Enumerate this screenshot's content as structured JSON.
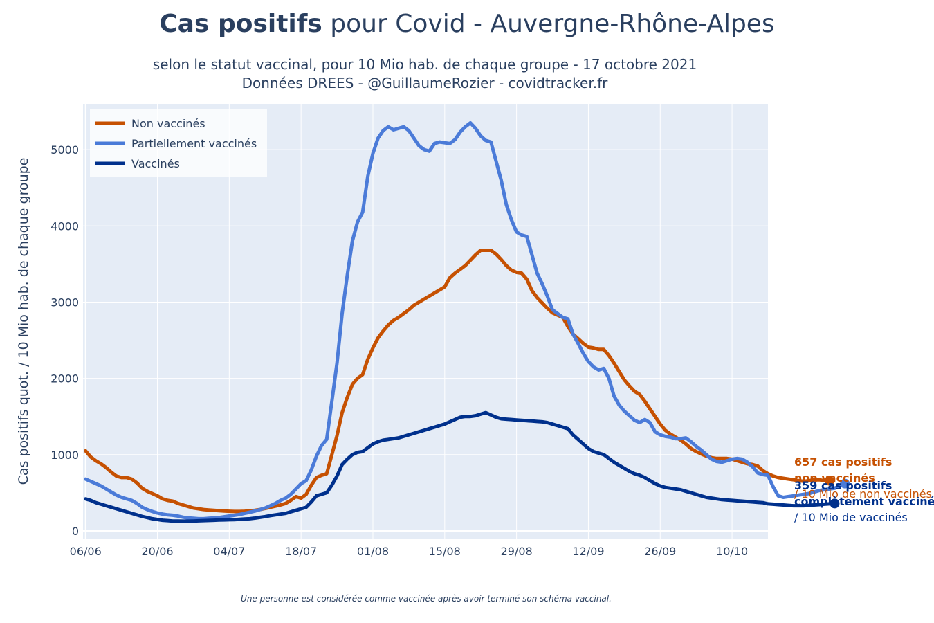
{
  "header": {
    "title_bold": "Cas positifs",
    "title_rest": " pour Covid - Auvergne-Rhône-Alpes",
    "subtitle_line1": "selon le statut vaccinal, pour 10 Mio hab. de chaque groupe - 17 octobre 2021",
    "subtitle_line2": "Données DREES - @GuillaumeRozier - covidtracker.fr"
  },
  "footnote": "Une personne est considérée comme vaccinée après avoir terminé son schéma vaccinal.",
  "chart_data": {
    "type": "line",
    "ylabel": "Cas positifs quot. / 10 Mio hab. de chaque groupe",
    "ylim": [
      -100,
      5600
    ],
    "yticks": [
      0,
      1000,
      2000,
      3000,
      4000,
      5000
    ],
    "x_tick_labels": [
      "06/06",
      "20/06",
      "04/07",
      "18/07",
      "01/08",
      "15/08",
      "29/08",
      "12/09",
      "26/09",
      "10/10"
    ],
    "x_start": "2021-06-06",
    "x_tick_step_days": 14,
    "x_range_days": [
      -0.5,
      133
    ],
    "grid": true,
    "legend_position": "top-left",
    "colors": {
      "plot_bg": "#e5ecf6",
      "text": "#2a3f5f"
    },
    "series": [
      {
        "name": "Non vaccinés",
        "color": "#c65102",
        "step_days": 1,
        "values": [
          1050,
          970,
          920,
          880,
          830,
          770,
          720,
          700,
          700,
          680,
          630,
          560,
          520,
          490,
          460,
          420,
          400,
          390,
          360,
          340,
          320,
          300,
          290,
          280,
          275,
          270,
          265,
          260,
          258,
          255,
          255,
          258,
          262,
          270,
          280,
          295,
          310,
          325,
          340,
          360,
          400,
          450,
          430,
          480,
          600,
          700,
          730,
          750,
          1000,
          1250,
          1550,
          1750,
          1920,
          2000,
          2050,
          2250,
          2400,
          2530,
          2620,
          2700,
          2760,
          2800,
          2850,
          2900,
          2960,
          3000,
          3040,
          3080,
          3120,
          3160,
          3200,
          3320,
          3380,
          3430,
          3480,
          3550,
          3620,
          3680,
          3680,
          3680,
          3630,
          3560,
          3480,
          3420,
          3390,
          3380,
          3300,
          3150,
          3060,
          2990,
          2920,
          2860,
          2830,
          2800,
          2680,
          2580,
          2520,
          2460,
          2410,
          2400,
          2380,
          2380,
          2300,
          2200,
          2090,
          1980,
          1900,
          1830,
          1790,
          1700,
          1600,
          1500,
          1400,
          1320,
          1270,
          1230,
          1190,
          1140,
          1080,
          1040,
          1010,
          980,
          960,
          950,
          950,
          950,
          940,
          920,
          900,
          880,
          870,
          850,
          790,
          750,
          720,
          700,
          690,
          680,
          670,
          660,
          650,
          660,
          670,
          670,
          660,
          657
        ]
      },
      {
        "name": "Partiellement vaccinés",
        "color": "#4b7bd8",
        "step_days": 1,
        "values": [
          680,
          650,
          620,
          590,
          550,
          510,
          470,
          440,
          420,
          400,
          360,
          310,
          280,
          255,
          235,
          220,
          210,
          205,
          195,
          180,
          170,
          165,
          160,
          160,
          165,
          170,
          175,
          185,
          195,
          205,
          215,
          230,
          245,
          260,
          280,
          300,
          330,
          360,
          400,
          430,
          480,
          550,
          620,
          660,
          800,
          980,
          1120,
          1200,
          1700,
          2200,
          2850,
          3350,
          3800,
          4050,
          4180,
          4650,
          4950,
          5150,
          5250,
          5300,
          5260,
          5280,
          5300,
          5250,
          5150,
          5050,
          5000,
          4980,
          5080,
          5100,
          5090,
          5080,
          5130,
          5230,
          5300,
          5350,
          5280,
          5180,
          5120,
          5100,
          4850,
          4600,
          4280,
          4080,
          3920,
          3880,
          3860,
          3620,
          3380,
          3240,
          3080,
          2900,
          2850,
          2800,
          2780,
          2580,
          2460,
          2330,
          2220,
          2150,
          2110,
          2130,
          2000,
          1770,
          1650,
          1570,
          1510,
          1450,
          1420,
          1460,
          1420,
          1300,
          1260,
          1240,
          1230,
          1210,
          1210,
          1220,
          1170,
          1110,
          1060,
          1000,
          940,
          910,
          900,
          920,
          940,
          950,
          940,
          900,
          840,
          760,
          740,
          730,
          580,
          460,
          440,
          450,
          460,
          470,
          480,
          490,
          510,
          530,
          540,
          550,
          560,
          590,
          620
        ]
      },
      {
        "name": "Vaccinés",
        "color": "#00308c",
        "step_days": 1,
        "values": [
          420,
          400,
          370,
          350,
          330,
          310,
          290,
          270,
          250,
          230,
          210,
          190,
          175,
          160,
          150,
          140,
          135,
          130,
          130,
          128,
          128,
          130,
          132,
          135,
          137,
          140,
          142,
          144,
          146,
          148,
          152,
          156,
          160,
          168,
          178,
          188,
          200,
          210,
          220,
          230,
          250,
          270,
          290,
          310,
          380,
          460,
          480,
          500,
          600,
          720,
          870,
          940,
          1000,
          1030,
          1040,
          1090,
          1140,
          1170,
          1190,
          1200,
          1210,
          1220,
          1240,
          1260,
          1280,
          1300,
          1320,
          1340,
          1360,
          1380,
          1400,
          1430,
          1460,
          1490,
          1500,
          1500,
          1510,
          1530,
          1550,
          1520,
          1490,
          1470,
          1465,
          1460,
          1455,
          1450,
          1445,
          1440,
          1435,
          1430,
          1420,
          1400,
          1380,
          1360,
          1340,
          1260,
          1200,
          1140,
          1080,
          1040,
          1020,
          1000,
          950,
          900,
          860,
          820,
          780,
          750,
          730,
          700,
          660,
          620,
          590,
          570,
          560,
          550,
          540,
          520,
          500,
          480,
          460,
          440,
          430,
          420,
          410,
          405,
          400,
          395,
          390,
          385,
          380,
          375,
          370,
          355,
          350,
          345,
          340,
          335,
          330,
          330,
          330,
          335,
          340,
          345,
          350,
          355,
          359
        ]
      }
    ],
    "annotations": [
      {
        "color": "#c65102",
        "bold_line1": "657 cas positifs",
        "bold_line2": "non vaccinés",
        "line3": "/ 10 Mio de non vaccinés"
      },
      {
        "color": "#00308c",
        "bold_line1": "359 cas positifs",
        "bold_line2": "complètement vaccinés",
        "line3": "/ 10 Mio de vaccinés"
      }
    ]
  }
}
